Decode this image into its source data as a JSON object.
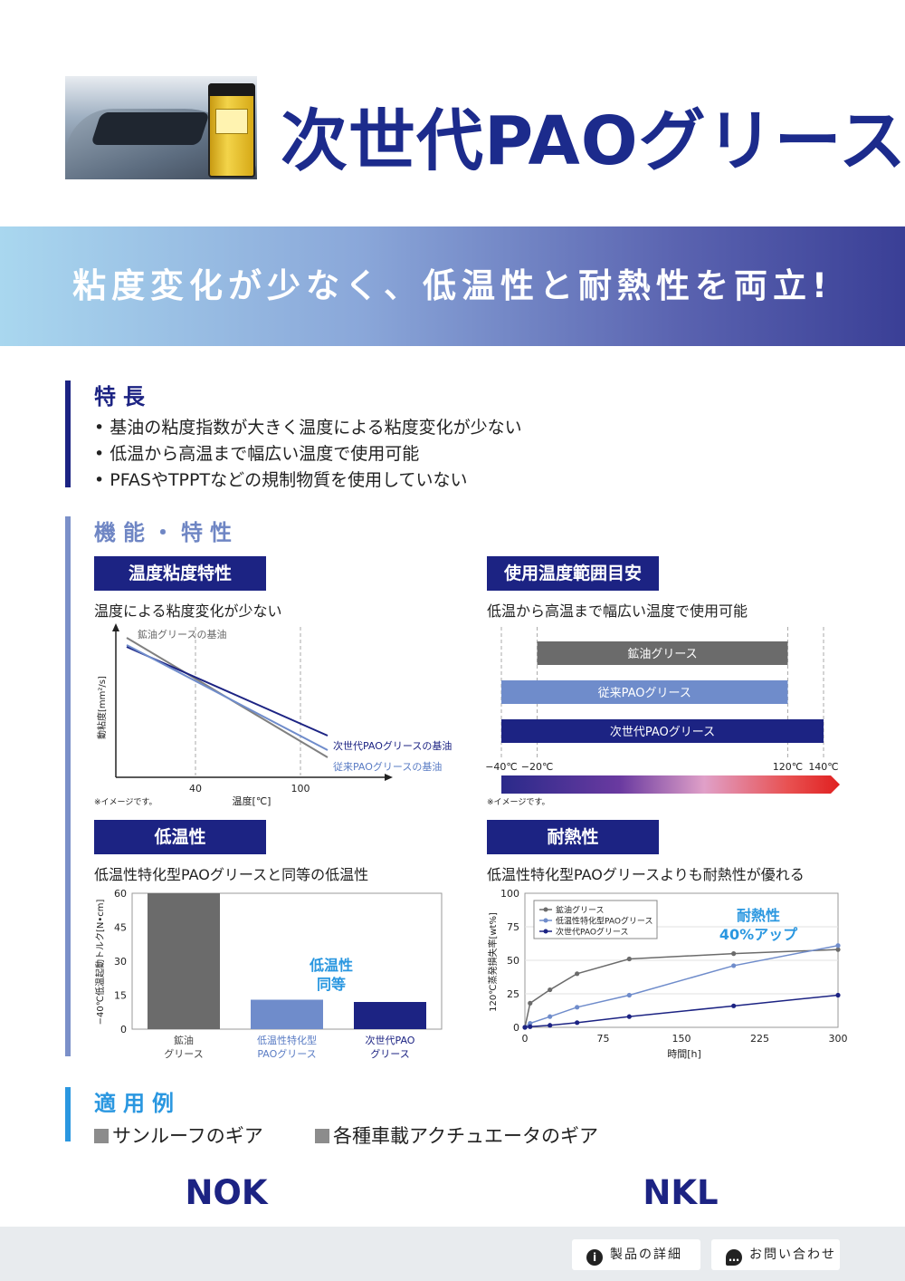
{
  "header": {
    "title": "次世代PAOグリース",
    "banner": "粘度変化が少なく、低温性と耐熱性を両立!"
  },
  "features": {
    "heading": "特長",
    "items": [
      "基油の粘度指数が大きく温度による粘度変化が少ない",
      "低温から高温まで幅広い温度で使用可能",
      "PFASやTPPTなどの規制物質を使用していない"
    ]
  },
  "performance": {
    "heading": "機能・特性",
    "viscosity": {
      "tag": "温度粘度特性",
      "subtitle": "温度による粘度変化が少ない",
      "note": "※イメージです。"
    },
    "range": {
      "tag": "使用温度範囲目安",
      "subtitle": "低温から高温まで幅広い温度で使用可能",
      "note": "※イメージです。"
    },
    "lowtemp": {
      "tag": "低温性",
      "subtitle": "低温性特化型PAOグリースと同等の低温性",
      "callout": [
        "低温性",
        "同等"
      ]
    },
    "heat": {
      "tag": "耐熱性",
      "subtitle": "低温性特化型PAOグリースよりも耐熱性が優れる",
      "callout": [
        "耐熱性",
        "40%アップ"
      ]
    }
  },
  "chart_data": [
    {
      "type": "line",
      "xlabel": "温度[℃]",
      "ylabel": "動粘度[mm²/s]",
      "x_ticks": [
        "40",
        "100"
      ],
      "series": [
        {
          "name": "鉱油グリースの基油",
          "color": "#808080"
        },
        {
          "name": "次世代PAOグリースの基油",
          "color": "#1c2383"
        },
        {
          "name": "従来PAOグリースの基油",
          "color": "#6f8ccb"
        }
      ]
    },
    {
      "type": "bar",
      "orientation": "horizontal",
      "series": [
        {
          "name": "鉱油グリース",
          "from": -20,
          "to": 120,
          "color": "#6b6b6b"
        },
        {
          "name": "従来PAOグリース",
          "from": -40,
          "to": 120,
          "color": "#6f8ccb"
        },
        {
          "name": "次世代PAOグリース",
          "from": -40,
          "to": 140,
          "color": "#1c2383"
        }
      ],
      "x_ticks": [
        "−40℃",
        "−20℃",
        "120℃",
        "140℃"
      ]
    },
    {
      "type": "bar",
      "ylabel": "−40℃低温起動トルク[N•cm]",
      "ylim": [
        0,
        60
      ],
      "yticks": [
        0,
        15,
        30,
        45,
        60
      ],
      "categories": [
        [
          "鉱油",
          "グリース"
        ],
        [
          "低温性特化型",
          "PAOグリース"
        ],
        [
          "次世代PAO",
          "グリース"
        ]
      ],
      "values": [
        60,
        13,
        12
      ],
      "colors": [
        "#6b6b6b",
        "#6f8ccb",
        "#1c2383"
      ],
      "label_colors": [
        "#444444",
        "#5a7cc4",
        "#1c2383"
      ]
    },
    {
      "type": "line",
      "xlabel": "時間[h]",
      "ylabel": "120℃蒸発損失率[wt%]",
      "xlim": [
        0,
        300
      ],
      "ylim": [
        0,
        100
      ],
      "xticks": [
        0,
        75,
        150,
        225,
        300
      ],
      "yticks": [
        0,
        25,
        50,
        75,
        100
      ],
      "series": [
        {
          "name": "鉱油グリース",
          "color": "#6b6b6b",
          "x": [
            0,
            5,
            24,
            50,
            100,
            200,
            300
          ],
          "y": [
            0,
            18,
            28,
            40,
            51,
            55,
            58
          ]
        },
        {
          "name": "低温性特化型PAOグリース",
          "color": "#6f8ccb",
          "x": [
            0,
            5,
            24,
            50,
            100,
            200,
            300
          ],
          "y": [
            0,
            3,
            8,
            15,
            24,
            46,
            61
          ]
        },
        {
          "name": "次世代PAOグリース",
          "color": "#1c2383",
          "x": [
            0,
            5,
            24,
            50,
            100,
            200,
            300
          ],
          "y": [
            0,
            0.5,
            1.5,
            3.5,
            8,
            16,
            24
          ]
        }
      ]
    }
  ],
  "applications": {
    "heading": "適用例",
    "items": [
      "サンルーフのギア",
      "各種車載アクチュエータのギア"
    ]
  },
  "logos": [
    "NOK",
    "NKL"
  ],
  "footer": {
    "details": "製品の詳細",
    "contact": "お問い合わせ"
  },
  "colors": {
    "navy": "#1c2383",
    "title": "#1c2b8c",
    "accent": "#2a97e0",
    "blue": "#6f8ccb"
  }
}
